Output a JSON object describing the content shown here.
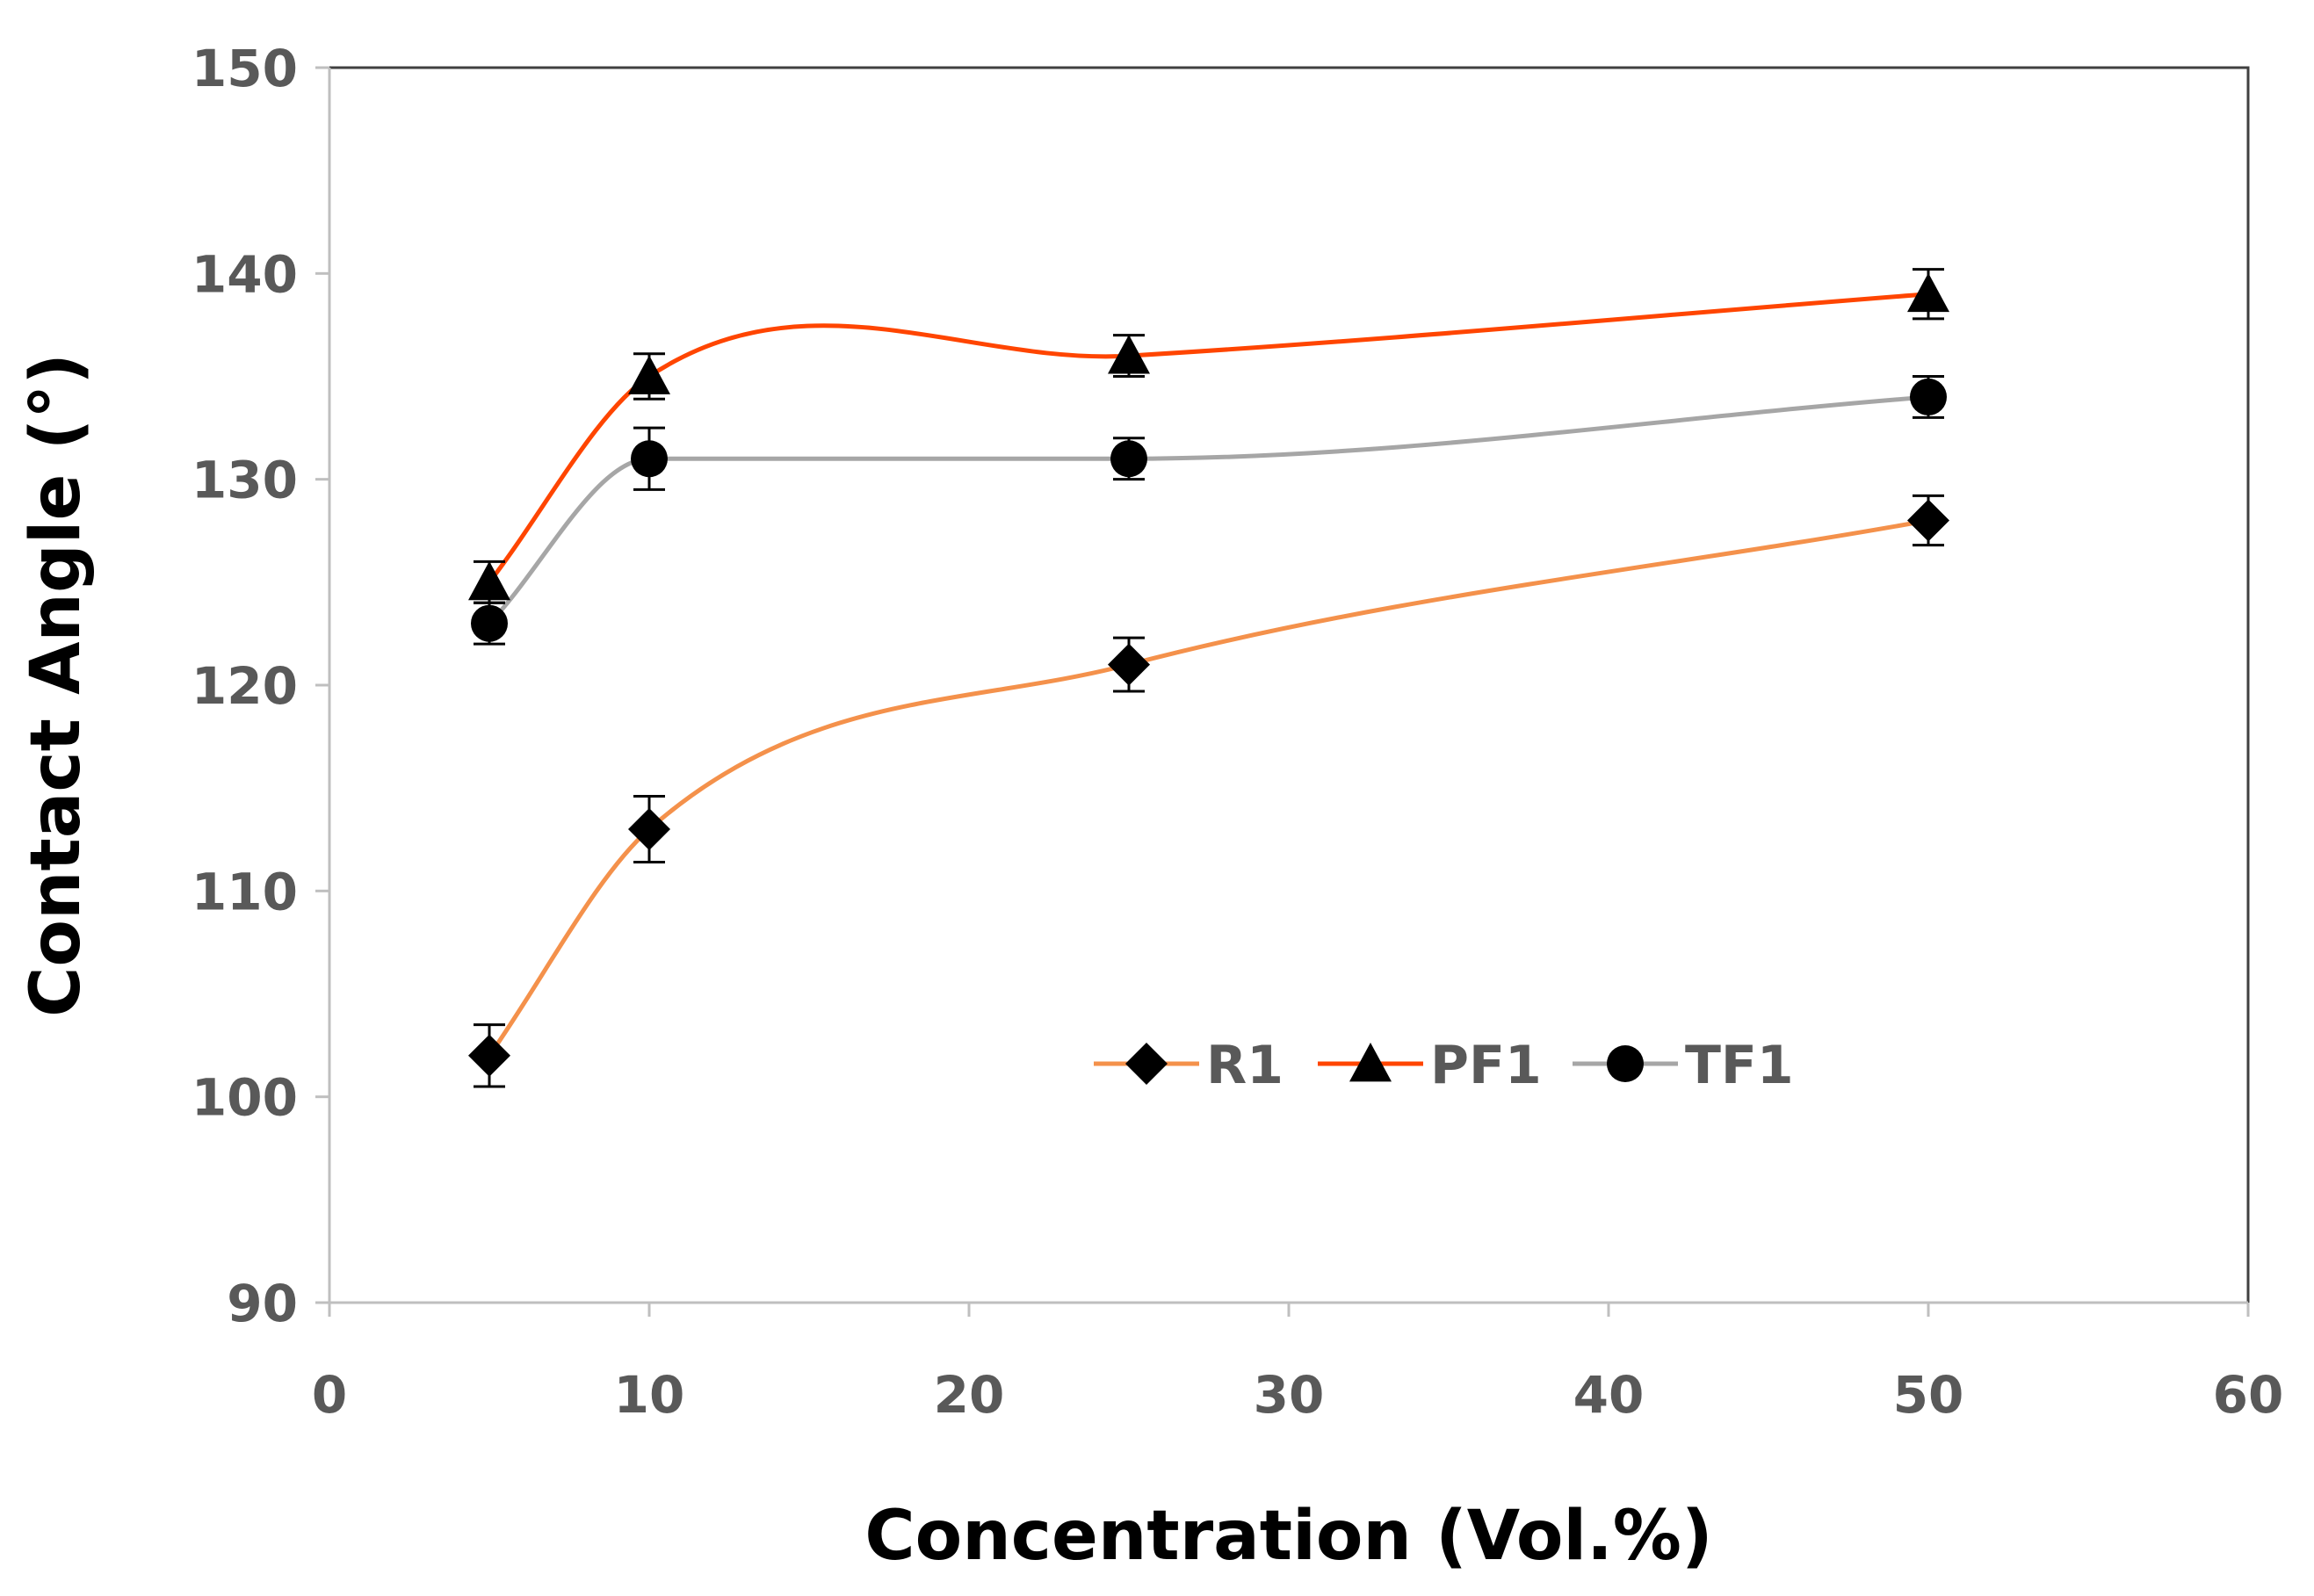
{
  "chart_data": {
    "type": "line",
    "xlabel": "Concentration (Vol.%)",
    "ylabel": "Contact Angle (°)",
    "xlim": [
      0,
      60
    ],
    "ylim": [
      90,
      150
    ],
    "x_ticks": [
      "0",
      "10",
      "20",
      "30",
      "40",
      "50",
      "60"
    ],
    "y_ticks": [
      "90",
      "100",
      "110",
      "120",
      "130",
      "140",
      "150"
    ],
    "grid": false,
    "legend_position": "bottom-center",
    "x": [
      5,
      10,
      25,
      50
    ],
    "series": [
      {
        "name": "R1",
        "marker": "diamond",
        "color": "#F4914B",
        "values": [
          102,
          113,
          121,
          128
        ],
        "errors": [
          1.5,
          1.6,
          1.3,
          1.2
        ]
      },
      {
        "name": "PF1",
        "marker": "triangle",
        "color": "#FF4500",
        "values": [
          125,
          135,
          136,
          139
        ],
        "errors": [
          1.0,
          1.1,
          1.0,
          1.2
        ]
      },
      {
        "name": "TF1",
        "marker": "circle",
        "color": "#A6A6A6",
        "values": [
          123,
          131,
          131,
          134
        ],
        "errors": [
          1.0,
          1.5,
          1.0,
          1.0
        ]
      }
    ]
  }
}
